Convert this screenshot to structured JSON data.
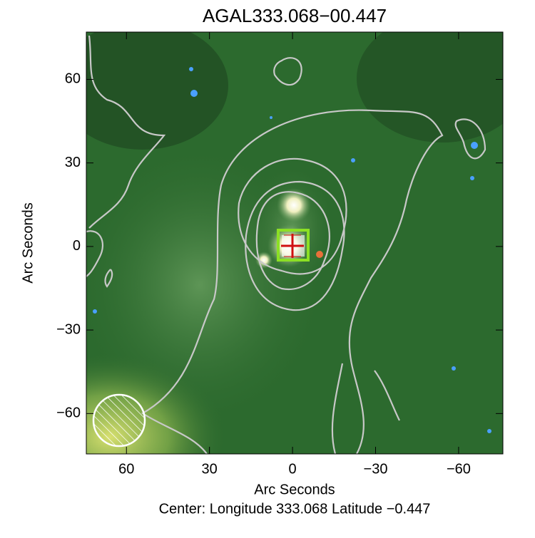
{
  "chart_data": {
    "type": "image",
    "title": "AGAL333.068−00.447",
    "xlabel": "Arc Seconds",
    "ylabel": "Arc Seconds",
    "footer": "Center:  Longitude 333.068 Latitude −0.447",
    "xlim": [
      74.5,
      -76
    ],
    "ylim": [
      -74.5,
      77
    ],
    "xticks": [
      60,
      30,
      0,
      {
        "value": -30,
        "label": "−30"
      },
      {
        "value": -60,
        "label": "−60"
      }
    ],
    "yticks": [
      {
        "value": -60,
        "label": "−60"
      },
      {
        "value": -30,
        "label": "−30"
      },
      0,
      30,
      60
    ]
  }
}
